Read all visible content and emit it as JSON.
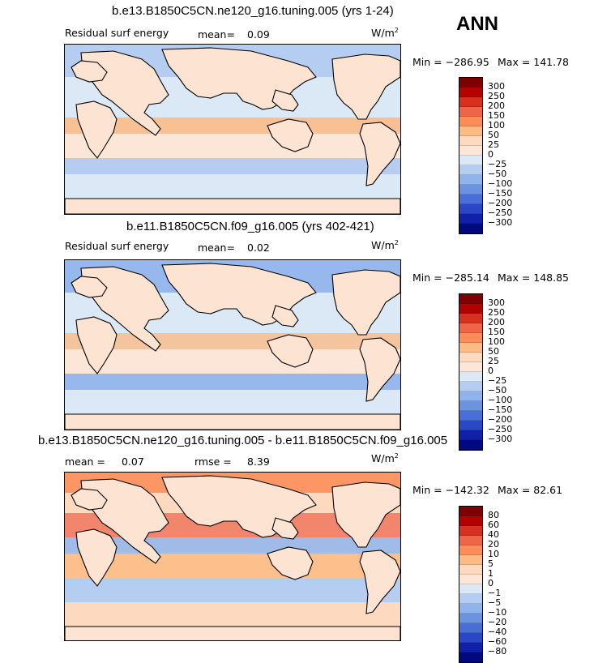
{
  "season": "ANN",
  "panels": [
    {
      "title": "b.e13.B1850C5CN.ne120_g16.tuning.005 (yrs 1-24)",
      "left_label": "Residual surf energy",
      "stat_label": "mean=",
      "stat_value": "0.09",
      "units": "W/m",
      "units_sup": "2",
      "min_label": "Min = ",
      "min_value": "−286.95",
      "max_label": "Max = ",
      "max_value": "141.78",
      "levels": [
        "300",
        "250",
        "200",
        "150",
        "100",
        "50",
        "25",
        "0",
        "−25",
        "−50",
        "−100",
        "−150",
        "−200",
        "−250",
        "−300"
      ]
    },
    {
      "title": "b.e11.B1850C5CN.f09_g16.005 (yrs 402-421)",
      "left_label": "Residual surf energy",
      "stat_label": "mean=",
      "stat_value": "0.02",
      "units": "W/m",
      "units_sup": "2",
      "min_label": "Min = ",
      "min_value": "−285.14",
      "max_label": "Max = ",
      "max_value": "148.85",
      "levels": [
        "300",
        "250",
        "200",
        "150",
        "100",
        "50",
        "25",
        "0",
        "−25",
        "−50",
        "−100",
        "−150",
        "−200",
        "−250",
        "−300"
      ]
    },
    {
      "title": "b.e13.B1850C5CN.ne120_g16.tuning.005 - b.e11.B1850C5CN.f09_g16.005",
      "stat_label": "mean =",
      "stat_value": "0.07",
      "stat2_label": "rmse =",
      "stat2_value": "8.39",
      "units": "W/m",
      "units_sup": "2",
      "min_label": "Min = ",
      "min_value": "−142.32",
      "max_label": "Max = ",
      "max_value": "82.61",
      "levels": [
        "80",
        "60",
        "40",
        "20",
        "10",
        "5",
        "1",
        "0",
        "−1",
        "−5",
        "−10",
        "−20",
        "−40",
        "−60",
        "−80"
      ]
    }
  ],
  "colors": {
    "palette": [
      "#7f0000",
      "#b30000",
      "#d7301f",
      "#ef6548",
      "#fc8d59",
      "#fdbb84",
      "#fdd9c0",
      "#fbe6d8",
      "#dbe8f5",
      "#b4cdf0",
      "#8fb3ea",
      "#6b93e0",
      "#4a6ed8",
      "#2a47c8",
      "#1020a8",
      "#000a80"
    ],
    "land": "#fde3d2",
    "ocean_light": "#d3e4f7"
  },
  "chart_data": {
    "type": "heatmap",
    "variable": "Residual surf energy",
    "season": "ANN",
    "units": "W/m2",
    "maps": [
      {
        "case": "b.e13.B1850C5CN.ne120_g16.tuning.005 (yrs 1-24)",
        "mean": 0.09,
        "min": -286.95,
        "max": 141.78,
        "contour_levels": [
          -300,
          -250,
          -200,
          -150,
          -100,
          -50,
          -25,
          0,
          25,
          50,
          100,
          150,
          200,
          250,
          300
        ]
      },
      {
        "case": "b.e11.B1850C5CN.f09_g16.005 (yrs 402-421)",
        "mean": 0.02,
        "min": -285.14,
        "max": 148.85,
        "contour_levels": [
          -300,
          -250,
          -200,
          -150,
          -100,
          -50,
          -25,
          0,
          25,
          50,
          100,
          150,
          200,
          250,
          300
        ]
      },
      {
        "case": "difference",
        "mean": 0.07,
        "rmse": 8.39,
        "min": -142.32,
        "max": 82.61,
        "contour_levels": [
          -80,
          -60,
          -40,
          -20,
          -10,
          -5,
          -1,
          0,
          1,
          5,
          10,
          20,
          40,
          60,
          80
        ]
      }
    ]
  }
}
